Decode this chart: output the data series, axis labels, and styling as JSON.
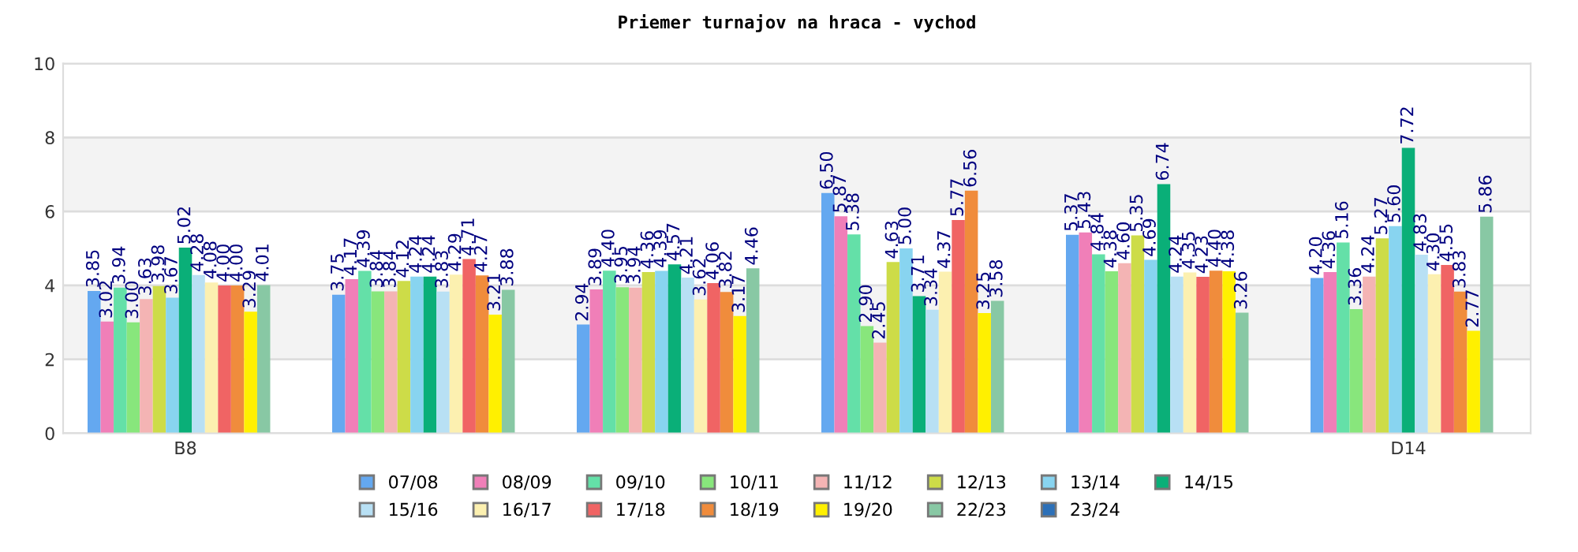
{
  "chart_data": {
    "type": "bar",
    "title": "Priemer turnajov na hraca - vychod",
    "categories": [
      "B8",
      null,
      null,
      null,
      null,
      "D14"
    ],
    "series": [
      {
        "name": "07/08",
        "color": "#64a8f0",
        "values": [
          3.85,
          3.75,
          2.94,
          6.5,
          5.37,
          4.2
        ],
        "value_labels": [
          "3.85",
          "3.75",
          "2.94",
          "6.50",
          "5.37",
          "4.20"
        ]
      },
      {
        "name": "08/09",
        "color": "#f07fb8",
        "values": [
          3.02,
          4.17,
          3.89,
          5.87,
          5.43,
          4.36
        ],
        "value_labels": [
          "3.02",
          "4.17",
          "3.89",
          "5.87",
          "5.43",
          "4.36"
        ]
      },
      {
        "name": "09/10",
        "color": "#64e0a8",
        "values": [
          3.94,
          4.39,
          4.4,
          5.38,
          4.84,
          5.16
        ],
        "value_labels": [
          "3.94",
          "4.39",
          "4.40",
          "5.38",
          "4.84",
          "5.16"
        ]
      },
      {
        "name": "10/11",
        "color": "#88e67c",
        "values": [
          3.0,
          3.84,
          3.95,
          2.9,
          4.38,
          3.36
        ],
        "value_labels": [
          "3.00",
          "3.84",
          "3.95",
          "2.90",
          "4.38",
          "3.36"
        ]
      },
      {
        "name": "11/12",
        "color": "#f4b4b4",
        "values": [
          3.63,
          3.84,
          3.94,
          2.45,
          4.6,
          4.24
        ],
        "value_labels": [
          "3.63",
          "3.84",
          "3.94",
          "2.45",
          "4.60",
          "4.24"
        ]
      },
      {
        "name": "12/13",
        "color": "#cddc48",
        "values": [
          3.98,
          4.12,
          4.36,
          4.63,
          5.35,
          5.27
        ],
        "value_labels": [
          "3.98",
          "4.12",
          "4.36",
          "4.63",
          "5.35",
          "5.27"
        ]
      },
      {
        "name": "13/14",
        "color": "#88d4f0",
        "values": [
          3.67,
          4.24,
          4.39,
          5.0,
          4.69,
          5.6
        ],
        "value_labels": [
          "3.67",
          "4.24",
          "4.39",
          "5.00",
          "4.69",
          "5.60"
        ]
      },
      {
        "name": "14/15",
        "color": "#0aaf78",
        "values": [
          5.02,
          4.24,
          4.57,
          3.71,
          6.74,
          7.72
        ],
        "value_labels": [
          "5.02",
          "4.24",
          "4.57",
          "3.71",
          "6.74",
          "7.72"
        ]
      },
      {
        "name": "15/16",
        "color": "#b8e0f4",
        "values": [
          4.28,
          3.83,
          4.21,
          3.34,
          4.24,
          4.83
        ],
        "value_labels": [
          "4.28",
          "3.83",
          "4.21",
          "3.34",
          "4.24",
          "4.83"
        ]
      },
      {
        "name": "16/17",
        "color": "#fcf0b0",
        "values": [
          4.08,
          4.29,
          3.62,
          4.37,
          4.35,
          4.3
        ],
        "value_labels": [
          "4.08",
          "4.29",
          "3.62",
          "4.37",
          "4.35",
          "4.30"
        ]
      },
      {
        "name": "17/18",
        "color": "#f06464",
        "values": [
          4.0,
          4.71,
          4.06,
          5.77,
          4.23,
          4.55
        ],
        "value_labels": [
          "4.00",
          "4.71",
          "4.06",
          "5.77",
          "4.23",
          "4.55"
        ]
      },
      {
        "name": "18/19",
        "color": "#f08c3c",
        "values": [
          4.0,
          4.27,
          3.82,
          6.56,
          4.4,
          3.83
        ],
        "value_labels": [
          "4.00",
          "4.27",
          "3.82",
          "6.56",
          "4.40",
          "3.83"
        ]
      },
      {
        "name": "19/20",
        "color": "#fff000",
        "values": [
          3.29,
          3.21,
          3.17,
          3.25,
          4.38,
          2.77
        ],
        "value_labels": [
          "3.29",
          "3.21",
          "3.17",
          "3.25",
          "4.38",
          "2.77"
        ]
      },
      {
        "name": "22/23",
        "color": "#88c8a4",
        "values": [
          4.01,
          3.88,
          4.46,
          3.58,
          3.26,
          5.86
        ],
        "value_labels": [
          "4.01",
          "3.88",
          "4.46",
          "3.58",
          "3.26",
          "5.86"
        ]
      },
      {
        "name": "23/24",
        "color": "#2c70b8",
        "values": [
          null,
          null,
          null,
          null,
          null,
          null
        ]
      }
    ],
    "ylim": [
      0,
      10
    ],
    "yticks": [
      0,
      2,
      4,
      6,
      8,
      10
    ],
    "grid": "y",
    "bands": [
      {
        "axis": "y",
        "from": 2,
        "to": 4,
        "color": "#f3f3f3"
      },
      {
        "axis": "y",
        "from": 6,
        "to": 8,
        "color": "#f3f3f3"
      }
    ],
    "legend": "bottom"
  }
}
